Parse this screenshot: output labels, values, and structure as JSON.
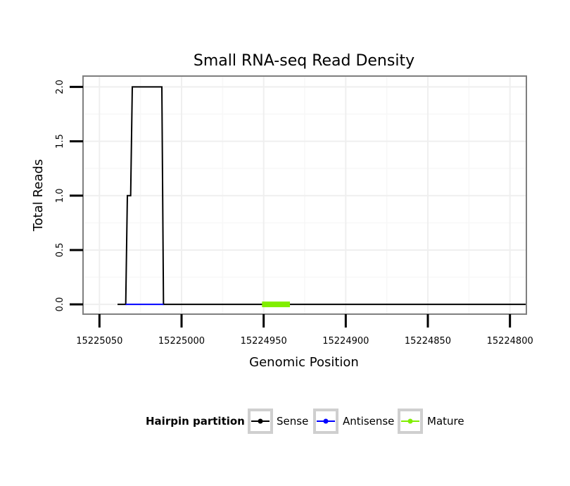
{
  "chart_data": {
    "type": "line",
    "title": "Small RNA-seq Read Density",
    "xlabel": "Genomic Position",
    "ylabel": "Total Reads",
    "xlim": [
      15225060,
      15224790
    ],
    "ylim": [
      -0.09,
      2.1
    ],
    "x_reversed": true,
    "grid": true,
    "x_ticks": [
      15225050,
      15225000,
      15224950,
      15224900,
      15224850,
      15224800
    ],
    "x_tick_labels": [
      "15225050",
      "15225000",
      "15224950",
      "15224900",
      "15224850",
      "15224800"
    ],
    "y_ticks": [
      0,
      0.5,
      1,
      1.5,
      2
    ],
    "y_tick_labels": [
      "0.0",
      "0.5",
      "1.0",
      "1.5",
      "2.0"
    ],
    "legend": {
      "title": "Hairpin partition",
      "position": "bottom",
      "entries": [
        {
          "name": "Sense",
          "color": "#000000"
        },
        {
          "name": "Antisense",
          "color": "#0000ff"
        },
        {
          "name": "Mature",
          "color": "#80ee00"
        }
      ]
    },
    "series": [
      {
        "name": "Sense",
        "color": "#000000",
        "x": [
          15225039,
          15225034,
          15225033,
          15225031,
          15225030,
          15225012,
          15225011,
          15224790
        ],
        "y": [
          0,
          0,
          1,
          1,
          2,
          2,
          0,
          0
        ]
      },
      {
        "name": "Antisense",
        "color": "#0000ff",
        "x": [
          15225034,
          15225011
        ],
        "y": [
          0,
          0
        ]
      },
      {
        "name": "Mature",
        "color": "#80ee00",
        "x": [
          15224951,
          15224934
        ],
        "y": [
          0,
          0
        ]
      }
    ]
  }
}
